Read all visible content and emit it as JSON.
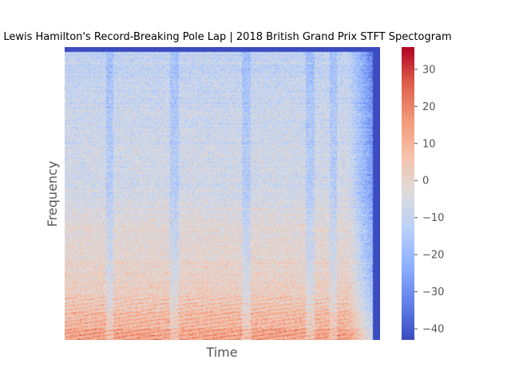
{
  "chart_data": {
    "type": "heatmap",
    "title": "Lewis Hamilton's Record-Breaking Pole Lap | 2018 British Grand Prix STFT Spectogram",
    "xlabel": "Time",
    "ylabel": "Frequency",
    "colormap": "coolwarm",
    "colorbar": {
      "range": [
        -43,
        36
      ],
      "ticks": [
        -40,
        -30,
        -20,
        -10,
        0,
        10,
        20,
        30
      ]
    },
    "x_ticks_visible": false,
    "y_ticks_visible": false,
    "grid": false
  }
}
